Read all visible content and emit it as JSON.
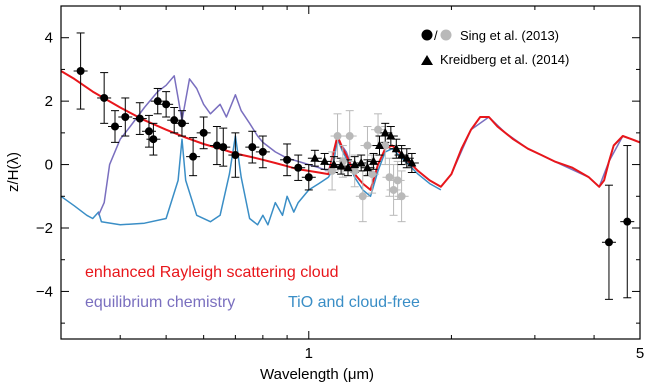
{
  "chart_data": {
    "type": "line",
    "xlabel": "Wavelength (μm)",
    "ylabel": "z/H(λ)",
    "xscale": "log",
    "xlim": [
      0.3,
      5.0
    ],
    "ylim": [
      -5.5,
      5.0
    ],
    "xticks": [
      {
        "value": 1,
        "label": "1"
      },
      {
        "value": 5,
        "label": "5"
      }
    ],
    "yticks": [
      {
        "value": 4,
        "label": "4"
      },
      {
        "value": 2,
        "label": "2"
      },
      {
        "value": 0,
        "label": "0"
      },
      {
        "value": -2,
        "label": "−2"
      },
      {
        "value": -4,
        "label": "−4"
      }
    ],
    "grid": false,
    "legend": {
      "placement": "top-right",
      "entries": [
        {
          "label": "Sing et al. (2013)",
          "marker": "circle-black-gray"
        },
        {
          "label": "Kreidberg et al. (2014)",
          "marker": "triangle-black"
        }
      ]
    },
    "series": [
      {
        "name": "enhanced Rayleigh scattering cloud",
        "color": "#e8161b",
        "points": [
          [
            0.3,
            2.95
          ],
          [
            0.32,
            2.7
          ],
          [
            0.35,
            2.3
          ],
          [
            0.4,
            1.8
          ],
          [
            0.45,
            1.4
          ],
          [
            0.5,
            1.1
          ],
          [
            0.55,
            0.85
          ],
          [
            0.6,
            0.65
          ],
          [
            0.65,
            0.5
          ],
          [
            0.7,
            0.35
          ],
          [
            0.75,
            0.25
          ],
          [
            0.8,
            0.15
          ],
          [
            0.85,
            0.05
          ],
          [
            0.9,
            -0.05
          ],
          [
            0.95,
            -0.15
          ],
          [
            1.0,
            -0.2
          ],
          [
            1.05,
            -0.25
          ],
          [
            1.1,
            -0.3
          ],
          [
            1.12,
            0.2
          ],
          [
            1.15,
            0.9
          ],
          [
            1.18,
            0.5
          ],
          [
            1.2,
            0.3
          ],
          [
            1.25,
            -0.3
          ],
          [
            1.3,
            -0.6
          ],
          [
            1.35,
            -0.8
          ],
          [
            1.4,
            0.0
          ],
          [
            1.45,
            0.5
          ],
          [
            1.5,
            0.6
          ],
          [
            1.6,
            0.2
          ],
          [
            1.7,
            -0.2
          ],
          [
            1.8,
            -0.5
          ],
          [
            1.9,
            -0.7
          ],
          [
            2.0,
            -0.3
          ],
          [
            2.1,
            0.5
          ],
          [
            2.2,
            1.1
          ],
          [
            2.3,
            1.5
          ],
          [
            2.4,
            1.5
          ],
          [
            2.5,
            1.2
          ],
          [
            2.7,
            0.8
          ],
          [
            2.9,
            0.5
          ],
          [
            3.1,
            0.3
          ],
          [
            3.3,
            0.1
          ],
          [
            3.6,
            -0.1
          ],
          [
            3.9,
            -0.4
          ],
          [
            4.1,
            -0.7
          ],
          [
            4.2,
            -0.5
          ],
          [
            4.3,
            0.1
          ],
          [
            4.4,
            0.6
          ],
          [
            4.6,
            0.9
          ],
          [
            4.8,
            0.8
          ],
          [
            5.0,
            0.7
          ]
        ]
      },
      {
        "name": "equilibrium chemistry",
        "color": "#7a6fbf",
        "points": [
          [
            0.36,
            -1.6
          ],
          [
            0.37,
            -1.2
          ],
          [
            0.38,
            0.0
          ],
          [
            0.4,
            0.8
          ],
          [
            0.42,
            1.2
          ],
          [
            0.45,
            1.8
          ],
          [
            0.48,
            2.3
          ],
          [
            0.5,
            2.5
          ],
          [
            0.52,
            2.8
          ],
          [
            0.54,
            1.4
          ],
          [
            0.56,
            2.7
          ],
          [
            0.58,
            2.4
          ],
          [
            0.6,
            1.9
          ],
          [
            0.62,
            1.6
          ],
          [
            0.65,
            1.9
          ],
          [
            0.67,
            1.5
          ],
          [
            0.7,
            2.2
          ],
          [
            0.72,
            1.7
          ],
          [
            0.75,
            1.3
          ],
          [
            0.78,
            0.9
          ],
          [
            0.8,
            0.7
          ],
          [
            0.85,
            0.4
          ],
          [
            0.9,
            0.2
          ],
          [
            0.95,
            0.1
          ],
          [
            1.0,
            0.0
          ],
          [
            1.05,
            -0.1
          ],
          [
            1.1,
            -0.2
          ],
          [
            1.15,
            0.8
          ],
          [
            1.2,
            0.4
          ],
          [
            1.25,
            -0.3
          ],
          [
            1.3,
            -0.6
          ],
          [
            1.35,
            -0.8
          ],
          [
            1.4,
            0.0
          ],
          [
            1.45,
            0.5
          ],
          [
            1.5,
            0.6
          ],
          [
            1.6,
            0.2
          ],
          [
            1.7,
            -0.2
          ],
          [
            1.8,
            -0.5
          ],
          [
            1.9,
            -0.7
          ],
          [
            2.0,
            -0.3
          ],
          [
            2.2,
            1.1
          ],
          [
            2.4,
            1.5
          ],
          [
            2.6,
            1.0
          ],
          [
            2.9,
            0.5
          ],
          [
            3.3,
            0.1
          ],
          [
            3.9,
            -0.4
          ],
          [
            4.1,
            -0.7
          ],
          [
            4.3,
            0.1
          ],
          [
            4.6,
            0.9
          ],
          [
            5.0,
            0.7
          ]
        ]
      },
      {
        "name": "TiO and cloud-free",
        "color": "#3a8ec6",
        "points": [
          [
            0.3,
            -1.0
          ],
          [
            0.32,
            -1.3
          ],
          [
            0.34,
            -1.6
          ],
          [
            0.35,
            -1.7
          ],
          [
            0.36,
            -1.5
          ],
          [
            0.365,
            -1.8
          ],
          [
            0.4,
            -1.9
          ],
          [
            0.45,
            -1.85
          ],
          [
            0.5,
            -1.7
          ],
          [
            0.53,
            -0.5
          ],
          [
            0.54,
            0.8
          ],
          [
            0.55,
            -0.5
          ],
          [
            0.58,
            -1.6
          ],
          [
            0.62,
            -1.8
          ],
          [
            0.65,
            -1.6
          ],
          [
            0.68,
            -0.3
          ],
          [
            0.7,
            0.9
          ],
          [
            0.72,
            -0.4
          ],
          [
            0.75,
            -1.7
          ],
          [
            0.78,
            -1.9
          ],
          [
            0.8,
            -1.6
          ],
          [
            0.82,
            -1.9
          ],
          [
            0.85,
            -1.2
          ],
          [
            0.88,
            -1.6
          ],
          [
            0.9,
            -1.0
          ],
          [
            0.93,
            -1.5
          ],
          [
            0.95,
            -1.2
          ],
          [
            1.0,
            -0.8
          ],
          [
            1.05,
            -0.6
          ],
          [
            1.1,
            -0.4
          ],
          [
            1.12,
            -0.2
          ],
          [
            1.15,
            0.8
          ],
          [
            1.18,
            0.4
          ],
          [
            1.2,
            0.2
          ],
          [
            1.25,
            -0.4
          ],
          [
            1.3,
            -0.8
          ],
          [
            1.35,
            -1.0
          ],
          [
            1.4,
            -0.2
          ],
          [
            1.45,
            0.4
          ],
          [
            1.5,
            0.5
          ],
          [
            1.6,
            0.1
          ],
          [
            1.7,
            -0.3
          ],
          [
            1.8,
            -0.6
          ],
          [
            1.9,
            -0.8
          ]
        ]
      },
      {
        "name": "Sing et al. (2013)",
        "color": "#000000",
        "marker": "circle",
        "points": [
          [
            0.33,
            2.95
          ],
          [
            0.37,
            2.1
          ],
          [
            0.39,
            1.2
          ],
          [
            0.41,
            1.5
          ],
          [
            0.44,
            1.45
          ],
          [
            0.46,
            1.05
          ],
          [
            0.47,
            0.8
          ],
          [
            0.48,
            2.0
          ],
          [
            0.5,
            1.9
          ],
          [
            0.52,
            1.4
          ],
          [
            0.54,
            1.3
          ],
          [
            0.57,
            0.25
          ],
          [
            0.6,
            1.0
          ],
          [
            0.64,
            0.6
          ],
          [
            0.66,
            0.55
          ],
          [
            0.7,
            0.3
          ],
          [
            0.76,
            0.55
          ],
          [
            0.8,
            0.4
          ],
          [
            0.9,
            0.15
          ],
          [
            0.95,
            -0.1
          ],
          [
            1.0,
            -0.4
          ],
          [
            4.3,
            -2.45
          ],
          [
            4.7,
            -1.8
          ]
        ],
        "error_y": [
          1.2,
          0.8,
          0.5,
          0.6,
          0.5,
          0.5,
          0.5,
          0.4,
          0.4,
          0.4,
          0.4,
          0.6,
          0.5,
          0.6,
          0.6,
          0.7,
          0.5,
          0.5,
          0.5,
          0.4,
          0.4,
          1.8,
          2.4
        ]
      },
      {
        "name": "Sing et al. (2013) IR",
        "color": "#b9b9b9",
        "marker": "circle",
        "points": [
          [
            1.12,
            -0.2
          ],
          [
            1.15,
            0.9
          ],
          [
            1.18,
            0.1
          ],
          [
            1.22,
            0.9
          ],
          [
            1.25,
            -0.2
          ],
          [
            1.3,
            -1.0
          ],
          [
            1.33,
            0.6
          ],
          [
            1.36,
            -0.3
          ],
          [
            1.4,
            1.1
          ],
          [
            1.45,
            0.6
          ],
          [
            1.48,
            -0.4
          ],
          [
            1.51,
            -0.8
          ],
          [
            1.54,
            -0.5
          ],
          [
            1.57,
            -1.0
          ]
        ],
        "error_y": [
          0.6,
          0.7,
          0.5,
          0.8,
          0.5,
          0.8,
          0.6,
          0.6,
          0.5,
          0.6,
          0.6,
          0.8,
          0.6,
          0.8
        ]
      },
      {
        "name": "Kreidberg et al. (2014)",
        "color": "#000000",
        "marker": "triangle",
        "points": [
          [
            1.03,
            0.2
          ],
          [
            1.08,
            0.1
          ],
          [
            1.13,
            0.0
          ],
          [
            1.17,
            -0.05
          ],
          [
            1.21,
            -0.1
          ],
          [
            1.25,
            0.0
          ],
          [
            1.29,
            0.05
          ],
          [
            1.33,
            -0.1
          ],
          [
            1.37,
            0.1
          ],
          [
            1.41,
            0.6
          ],
          [
            1.45,
            1.0
          ],
          [
            1.49,
            0.9
          ],
          [
            1.53,
            0.5
          ],
          [
            1.57,
            0.3
          ],
          [
            1.61,
            0.2
          ],
          [
            1.65,
            0.05
          ]
        ],
        "error_y": [
          0.25,
          0.25,
          0.25,
          0.25,
          0.25,
          0.25,
          0.25,
          0.25,
          0.25,
          0.3,
          0.3,
          0.3,
          0.3,
          0.3,
          0.3,
          0.3
        ]
      }
    ],
    "annotations": [
      {
        "text": "enhanced Rayleigh scattering cloud",
        "color": "#e8161b"
      },
      {
        "text": "equilibrium chemistry",
        "color": "#7a6fbf"
      },
      {
        "text": "TiO and cloud-free",
        "color": "#3a8ec6"
      }
    ]
  }
}
